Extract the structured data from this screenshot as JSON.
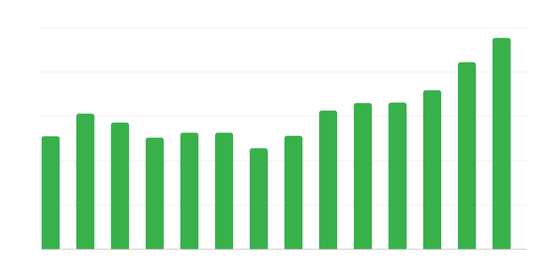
{
  "chart_data": {
    "type": "bar",
    "categories": [
      null,
      null,
      null,
      null,
      null,
      null,
      null,
      null,
      null,
      null,
      null,
      null,
      null,
      null
    ],
    "values": [
      2.55,
      3.06,
      2.86,
      2.52,
      2.63,
      2.63,
      2.28,
      2.56,
      3.13,
      3.3,
      3.31,
      3.59,
      4.22,
      4.77
    ],
    "color": "#38b14b",
    "ylim": [
      0,
      5
    ],
    "yticks": [
      0,
      1,
      2,
      3,
      4,
      5
    ],
    "grid": true,
    "y_tick_labels": false
  }
}
